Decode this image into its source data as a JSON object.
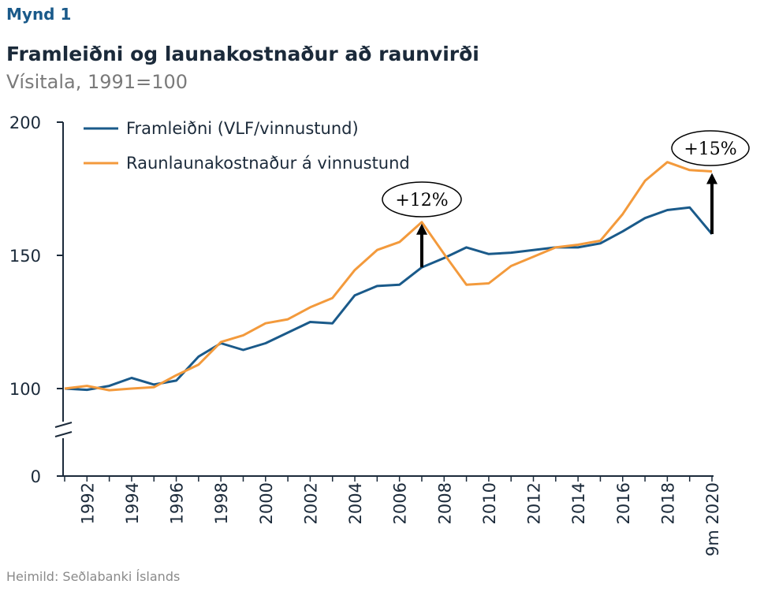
{
  "header": {
    "figure_label": "Mynd 1",
    "title": "Framleiðni og launakostnaður að raunvirði",
    "subtitle": "Vísitala, 1991=100"
  },
  "footer": {
    "source": "Heimild: Seðlabanki Íslands"
  },
  "colors": {
    "series_1": "#1a5a8a",
    "series_2": "#f39a3c",
    "axis": "#1b2a3a",
    "arrow": "#000000"
  },
  "chart_data": {
    "type": "line",
    "x": [
      "1991",
      "1992",
      "1993",
      "1994",
      "1995",
      "1996",
      "1997",
      "1998",
      "1999",
      "2000",
      "2001",
      "2002",
      "2003",
      "2004",
      "2005",
      "2006",
      "2007",
      "2008",
      "2009",
      "2010",
      "2011",
      "2012",
      "2013",
      "2014",
      "2015",
      "2016",
      "2017",
      "2018",
      "2019",
      "9m 2020"
    ],
    "x_tick_labels": [
      "1992",
      "1994",
      "1996",
      "1998",
      "2000",
      "2002",
      "2004",
      "2006",
      "2008",
      "2010",
      "2012",
      "2014",
      "2016",
      "2018",
      "9m 2020"
    ],
    "y_tick_labels": [
      "0",
      "100",
      "150",
      "200"
    ],
    "ylim": [
      0,
      200
    ],
    "y_axis_break": "between 0 and 100",
    "legend_position": "top-left",
    "grid": false,
    "series": [
      {
        "name": "Framleiðni (VLF/vinnustund)",
        "color": "#1a5a8a",
        "values": [
          100,
          99.5,
          101,
          104,
          101.5,
          103,
          112,
          117,
          114.5,
          117,
          121,
          125,
          124.5,
          135,
          138.5,
          139,
          145.5,
          149,
          153,
          150.5,
          151,
          152,
          153,
          153,
          154.5,
          159,
          164,
          167,
          168,
          158
        ]
      },
      {
        "name": "Raunlaunakostnaður á vinnustund",
        "color": "#f39a3c",
        "values": [
          100,
          101,
          99,
          100,
          100.5,
          105,
          109,
          117.5,
          120,
          124.5,
          126,
          130.5,
          134,
          144.5,
          152,
          155,
          162.5,
          150.5,
          139,
          139.5,
          146,
          149.5,
          153,
          154,
          155.5,
          165.5,
          178,
          185,
          182,
          181.5
        ]
      }
    ],
    "annotations": [
      {
        "text": "+12%",
        "x": "2007",
        "from": 145.5,
        "to": 162.5
      },
      {
        "text": "+15%",
        "x": "9m 2020",
        "from": 158,
        "to": 181.5
      }
    ]
  }
}
